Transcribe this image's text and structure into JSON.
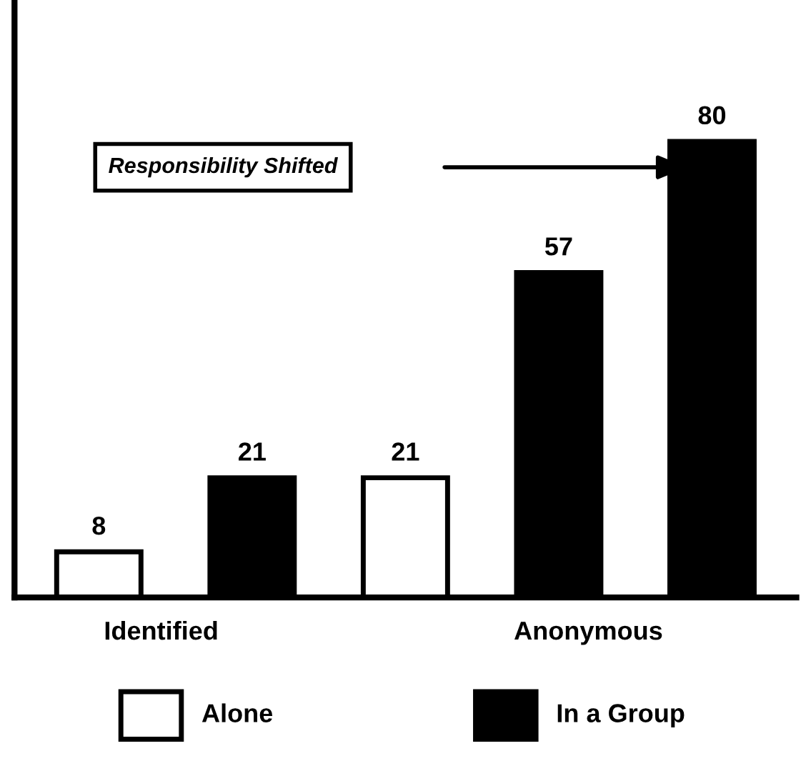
{
  "chart_data": {
    "type": "bar",
    "categories": [
      null,
      null,
      null,
      null,
      null
    ],
    "values": [
      8,
      21,
      21,
      57,
      80
    ],
    "colors": [
      "#ffffff",
      "#000000",
      "#ffffff",
      "#000000",
      "#000000"
    ],
    "data_labels": true,
    "grid": false,
    "annotations": [
      "Identified",
      "Anonymous",
      "Responsibility Shifted",
      "Alone",
      "In a Group"
    ]
  }
}
